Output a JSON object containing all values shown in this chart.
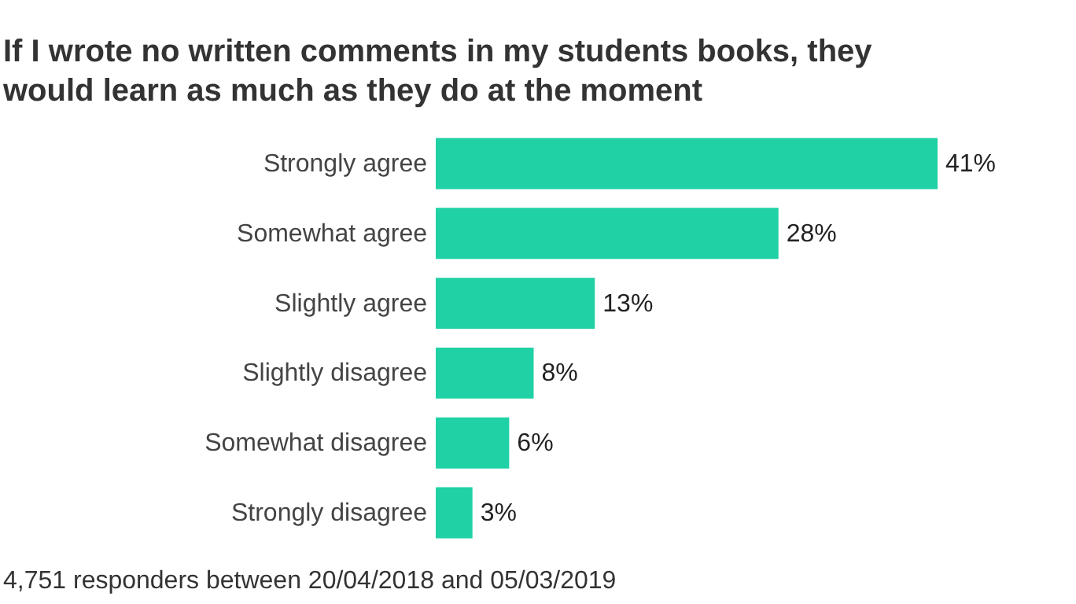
{
  "chart_data": {
    "type": "bar",
    "orientation": "horizontal",
    "title": "If I wrote no written comments in my students books, they would learn as much as they do at the moment",
    "categories": [
      "Strongly agree",
      "Somewhat agree",
      "Slightly agree",
      "Slightly disagree",
      "Somewhat disagree",
      "Strongly disagree"
    ],
    "values": [
      41,
      28,
      13,
      8,
      6,
      3
    ],
    "value_labels": [
      "41%",
      "28%",
      "13%",
      "8%",
      "6%",
      "3%"
    ],
    "color": "#1fd1a5",
    "grid": false,
    "annotations": [
      "4,751 responders between 20/04/2018 and 05/03/2019"
    ]
  }
}
